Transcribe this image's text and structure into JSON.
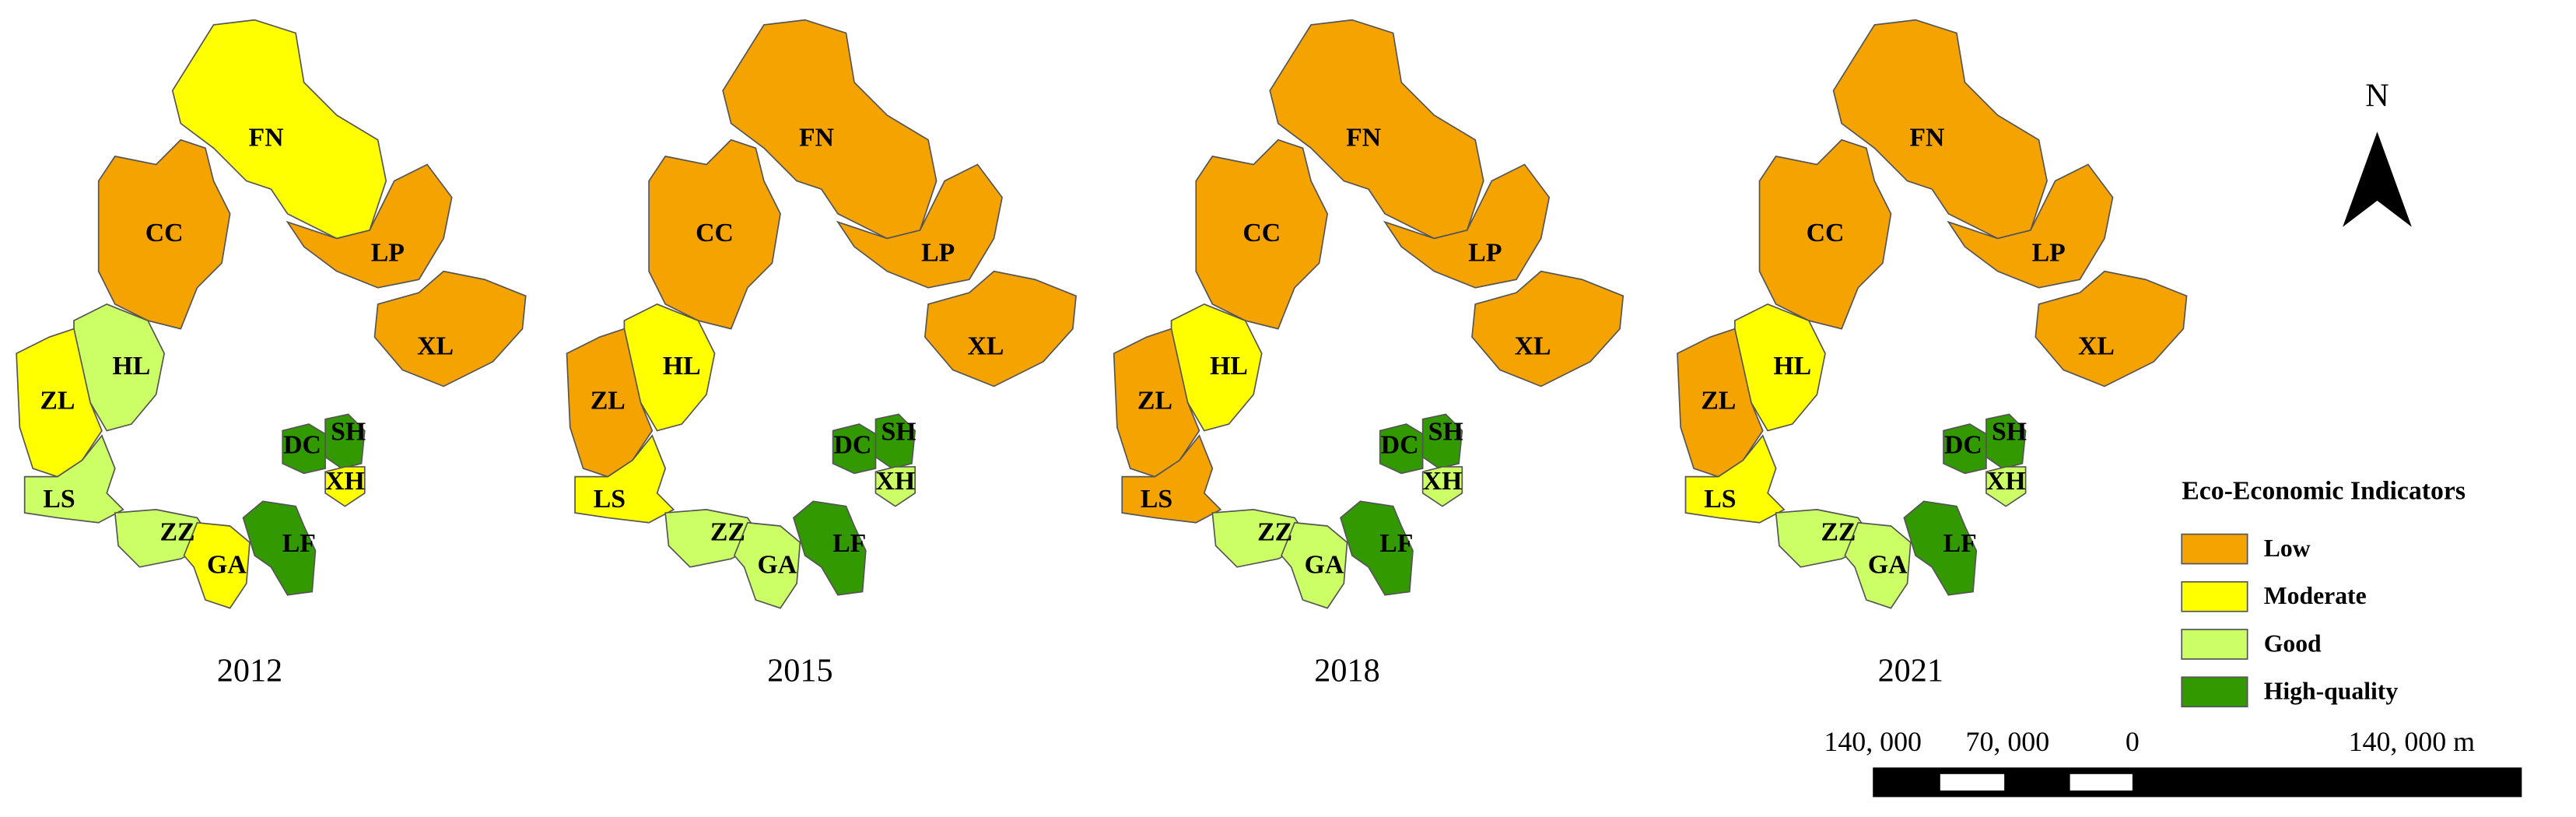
{
  "north": "N",
  "legend": {
    "title": "Eco-Economic Indicators",
    "items": [
      {
        "label": "Low",
        "color": "#f5a300"
      },
      {
        "label": "Moderate",
        "color": "#ffff00"
      },
      {
        "label": "Good",
        "color": "#ccff66"
      },
      {
        "label": "High-quality",
        "color": "#339900"
      }
    ]
  },
  "scale_bar": {
    "labels": [
      "140, 000",
      "70, 000",
      "0",
      "140, 000 m"
    ]
  },
  "maps": [
    {
      "year": "2012",
      "regions": [
        {
          "code": "FN",
          "class": "Moderate"
        },
        {
          "code": "CC",
          "class": "Low"
        },
        {
          "code": "LP",
          "class": "Low"
        },
        {
          "code": "XL",
          "class": "Low"
        },
        {
          "code": "HL",
          "class": "Good"
        },
        {
          "code": "ZL",
          "class": "Moderate"
        },
        {
          "code": "LS",
          "class": "Good"
        },
        {
          "code": "ZZ",
          "class": "Good"
        },
        {
          "code": "GA",
          "class": "Moderate"
        },
        {
          "code": "LF",
          "class": "High-quality"
        },
        {
          "code": "DC",
          "class": "High-quality"
        },
        {
          "code": "SH",
          "class": "High-quality"
        },
        {
          "code": "XH",
          "class": "Moderate"
        }
      ]
    },
    {
      "year": "2015",
      "regions": [
        {
          "code": "FN",
          "class": "Low"
        },
        {
          "code": "CC",
          "class": "Low"
        },
        {
          "code": "LP",
          "class": "Low"
        },
        {
          "code": "XL",
          "class": "Low"
        },
        {
          "code": "HL",
          "class": "Moderate"
        },
        {
          "code": "ZL",
          "class": "Low"
        },
        {
          "code": "LS",
          "class": "Moderate"
        },
        {
          "code": "ZZ",
          "class": "Good"
        },
        {
          "code": "GA",
          "class": "Good"
        },
        {
          "code": "LF",
          "class": "High-quality"
        },
        {
          "code": "DC",
          "class": "High-quality"
        },
        {
          "code": "SH",
          "class": "High-quality"
        },
        {
          "code": "XH",
          "class": "Good"
        }
      ]
    },
    {
      "year": "2018",
      "regions": [
        {
          "code": "FN",
          "class": "Low"
        },
        {
          "code": "CC",
          "class": "Low"
        },
        {
          "code": "LP",
          "class": "Low"
        },
        {
          "code": "XL",
          "class": "Low"
        },
        {
          "code": "HL",
          "class": "Moderate"
        },
        {
          "code": "ZL",
          "class": "Low"
        },
        {
          "code": "LS",
          "class": "Low"
        },
        {
          "code": "ZZ",
          "class": "Good"
        },
        {
          "code": "GA",
          "class": "Good"
        },
        {
          "code": "LF",
          "class": "High-quality"
        },
        {
          "code": "DC",
          "class": "High-quality"
        },
        {
          "code": "SH",
          "class": "High-quality"
        },
        {
          "code": "XH",
          "class": "Good"
        }
      ]
    },
    {
      "year": "2021",
      "regions": [
        {
          "code": "FN",
          "class": "Low"
        },
        {
          "code": "CC",
          "class": "Low"
        },
        {
          "code": "LP",
          "class": "Low"
        },
        {
          "code": "XL",
          "class": "Low"
        },
        {
          "code": "HL",
          "class": "Moderate"
        },
        {
          "code": "ZL",
          "class": "Low"
        },
        {
          "code": "LS",
          "class": "Moderate"
        },
        {
          "code": "ZZ",
          "class": "Good"
        },
        {
          "code": "GA",
          "class": "Good"
        },
        {
          "code": "LF",
          "class": "High-quality"
        },
        {
          "code": "DC",
          "class": "High-quality"
        },
        {
          "code": "SH",
          "class": "High-quality"
        },
        {
          "code": "XH",
          "class": "Good"
        }
      ]
    }
  ]
}
